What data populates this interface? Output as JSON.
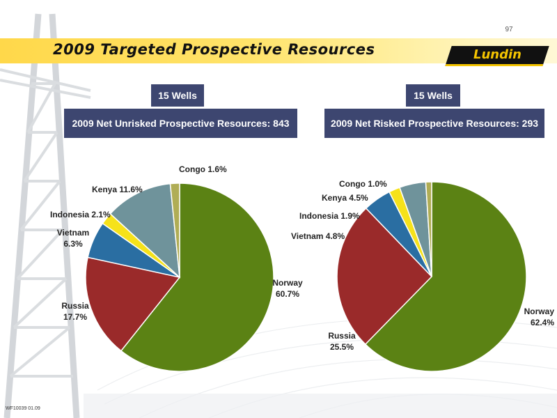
{
  "slide": {
    "page_number": "97",
    "title": "2009 Targeted Prospective Resources",
    "logo_text": "Lundin",
    "footer_code": "WF10039 01.09"
  },
  "left_panel": {
    "wells": "15 Wells",
    "headline": "2009 Net Unrisked  Prospective Resources:  843 MMboe"
  },
  "right_panel": {
    "wells": "15 Wells",
    "headline": "2009 Net Risked Prospective Resources:  293 MMboe"
  },
  "colors": {
    "norway": "#5b8214",
    "russia": "#9a2a2a",
    "vietnam": "#2a6ea2",
    "indonesia": "#f6e21a",
    "kenya": "#6f939b",
    "congo": "#b0ad55",
    "box": "#3d4670",
    "band": "#ffd84a"
  },
  "chart_data": [
    {
      "type": "pie",
      "title": "",
      "slices": [
        {
          "name": "Norway",
          "value": 60.7,
          "label": [
            "Norway",
            "60.7%"
          ]
        },
        {
          "name": "Russia",
          "value": 17.7,
          "label": [
            "Russia",
            "17.7%"
          ]
        },
        {
          "name": "Vietnam",
          "value": 6.3,
          "label": [
            "Vietnam",
            "6.3%"
          ]
        },
        {
          "name": "Indonesia",
          "value": 2.1,
          "label": [
            "Indonesia 2.1%"
          ]
        },
        {
          "name": "Kenya",
          "value": 11.6,
          "label": [
            "Kenya  11.6%"
          ]
        },
        {
          "name": "Congo",
          "value": 1.6,
          "label": [
            "Congo  1.6%"
          ]
        }
      ]
    },
    {
      "type": "pie",
      "title": "",
      "slices": [
        {
          "name": "Norway",
          "value": 62.4,
          "label": [
            "Norway",
            "62.4%"
          ]
        },
        {
          "name": "Russia",
          "value": 25.5,
          "label": [
            "Russia",
            "25.5%"
          ]
        },
        {
          "name": "Vietnam",
          "value": 4.8,
          "label": [
            "Vietnam   4.8%"
          ]
        },
        {
          "name": "Indonesia",
          "value": 1.9,
          "label": [
            "Indonesia 1.9%"
          ]
        },
        {
          "name": "Kenya",
          "value": 4.5,
          "label": [
            "Kenya  4.5%"
          ]
        },
        {
          "name": "Congo",
          "value": 1.0,
          "label": [
            "Congo 1.0%"
          ]
        }
      ]
    }
  ]
}
